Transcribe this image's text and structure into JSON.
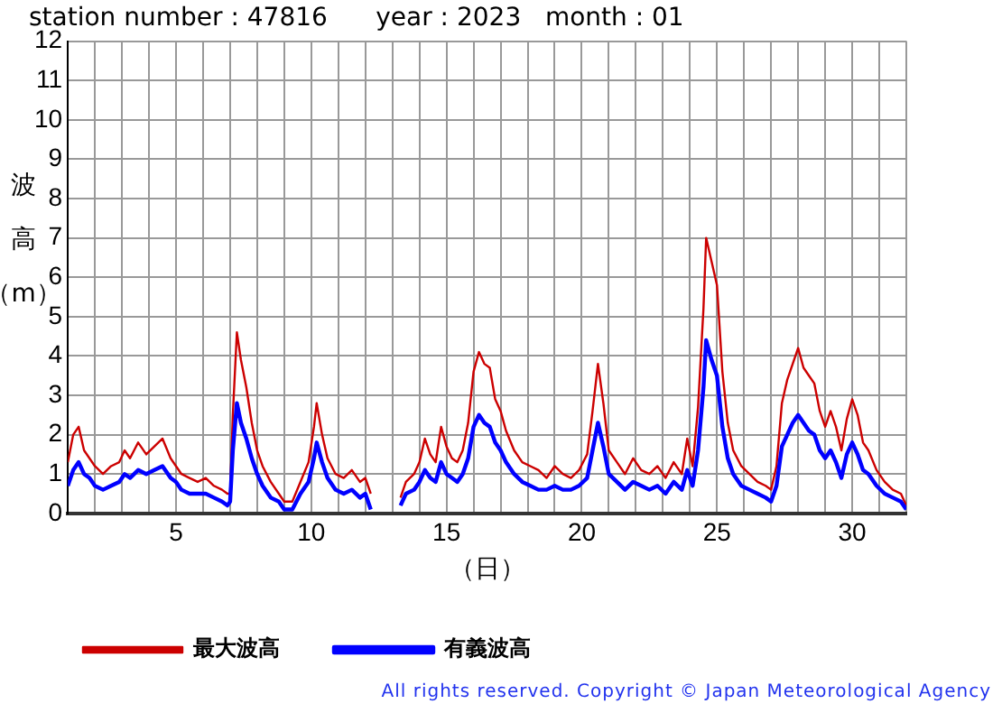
{
  "chart_data": {
    "type": "line",
    "title": "station number : 47816      year : 2023   month : 01",
    "xlabel": "（日）",
    "ylabel": "波高（m）",
    "x": [
      1.0,
      1.2,
      1.4,
      1.6,
      1.8,
      2.0,
      2.3,
      2.6,
      2.9,
      3.1,
      3.3,
      3.6,
      3.9,
      4.2,
      4.5,
      4.8,
      5.0,
      5.2,
      5.5,
      5.8,
      6.1,
      6.4,
      6.7,
      6.9,
      7.0,
      7.1,
      7.25,
      7.4,
      7.6,
      7.8,
      8.0,
      8.2,
      8.5,
      8.8,
      9.0,
      9.3,
      9.6,
      9.9,
      10.1,
      10.2,
      10.4,
      10.6,
      10.9,
      11.2,
      11.5,
      11.8,
      12.0,
      12.2,
      12.7,
      13.3,
      13.5,
      13.8,
      14.0,
      14.2,
      14.4,
      14.6,
      14.8,
      15.0,
      15.2,
      15.4,
      15.6,
      15.8,
      16.0,
      16.2,
      16.4,
      16.6,
      16.8,
      17.0,
      17.2,
      17.5,
      17.8,
      18.1,
      18.4,
      18.7,
      19.0,
      19.3,
      19.6,
      19.9,
      20.2,
      20.4,
      20.6,
      20.8,
      21.0,
      21.3,
      21.6,
      21.9,
      22.2,
      22.5,
      22.8,
      23.1,
      23.4,
      23.7,
      23.9,
      24.1,
      24.3,
      24.5,
      24.6,
      24.8,
      25.0,
      25.2,
      25.4,
      25.6,
      25.9,
      26.2,
      26.5,
      26.8,
      27.0,
      27.2,
      27.4,
      27.6,
      27.8,
      28.0,
      28.2,
      28.4,
      28.6,
      28.8,
      29.0,
      29.2,
      29.4,
      29.6,
      29.8,
      30.0,
      30.2,
      30.4,
      30.6,
      30.9,
      31.2,
      31.5,
      31.8,
      32.0
    ],
    "series": [
      {
        "name": "最大波高",
        "color": "#cc0000",
        "values": [
          1.3,
          2.0,
          2.2,
          1.6,
          1.4,
          1.2,
          1.0,
          1.2,
          1.3,
          1.6,
          1.4,
          1.8,
          1.5,
          1.7,
          1.9,
          1.4,
          1.2,
          1.0,
          0.9,
          0.8,
          0.9,
          0.7,
          0.6,
          0.5,
          0.5,
          2.5,
          4.6,
          3.9,
          3.2,
          2.3,
          1.6,
          1.2,
          0.8,
          0.5,
          0.3,
          0.3,
          0.8,
          1.3,
          2.2,
          2.8,
          2.0,
          1.4,
          1.0,
          0.9,
          1.1,
          0.8,
          0.9,
          0.5,
          null,
          0.4,
          0.8,
          1.0,
          1.3,
          1.9,
          1.5,
          1.3,
          2.2,
          1.7,
          1.4,
          1.3,
          1.6,
          2.3,
          3.6,
          4.1,
          3.8,
          3.7,
          2.9,
          2.6,
          2.1,
          1.6,
          1.3,
          1.2,
          1.1,
          0.9,
          1.2,
          1.0,
          0.9,
          1.1,
          1.5,
          2.6,
          3.8,
          2.8,
          1.6,
          1.3,
          1.0,
          1.4,
          1.1,
          1.0,
          1.2,
          0.9,
          1.3,
          1.0,
          1.9,
          1.2,
          2.7,
          5.2,
          7.0,
          6.4,
          5.8,
          3.6,
          2.3,
          1.6,
          1.2,
          1.0,
          0.8,
          0.7,
          0.6,
          1.2,
          2.8,
          3.4,
          3.8,
          4.2,
          3.7,
          3.5,
          3.3,
          2.6,
          2.2,
          2.6,
          2.2,
          1.6,
          2.4,
          2.9,
          2.5,
          1.8,
          1.6,
          1.1,
          0.8,
          0.6,
          0.5,
          0.2
        ]
      },
      {
        "name": "有義波高",
        "color": "#0000ff",
        "values": [
          0.7,
          1.1,
          1.3,
          1.0,
          0.9,
          0.7,
          0.6,
          0.7,
          0.8,
          1.0,
          0.9,
          1.1,
          1.0,
          1.1,
          1.2,
          0.9,
          0.8,
          0.6,
          0.5,
          0.5,
          0.5,
          0.4,
          0.3,
          0.2,
          0.3,
          1.6,
          2.8,
          2.3,
          1.9,
          1.4,
          1.0,
          0.7,
          0.4,
          0.3,
          0.1,
          0.1,
          0.5,
          0.8,
          1.4,
          1.8,
          1.3,
          0.9,
          0.6,
          0.5,
          0.6,
          0.4,
          0.5,
          0.1,
          null,
          0.2,
          0.5,
          0.6,
          0.8,
          1.1,
          0.9,
          0.8,
          1.3,
          1.0,
          0.9,
          0.8,
          1.0,
          1.4,
          2.2,
          2.5,
          2.3,
          2.2,
          1.8,
          1.6,
          1.3,
          1.0,
          0.8,
          0.7,
          0.6,
          0.6,
          0.7,
          0.6,
          0.6,
          0.7,
          0.9,
          1.6,
          2.3,
          1.7,
          1.0,
          0.8,
          0.6,
          0.8,
          0.7,
          0.6,
          0.7,
          0.5,
          0.8,
          0.6,
          1.1,
          0.7,
          1.6,
          3.2,
          4.4,
          3.9,
          3.5,
          2.2,
          1.4,
          1.0,
          0.7,
          0.6,
          0.5,
          0.4,
          0.3,
          0.7,
          1.7,
          2.0,
          2.3,
          2.5,
          2.3,
          2.1,
          2.0,
          1.6,
          1.4,
          1.6,
          1.3,
          0.9,
          1.5,
          1.8,
          1.5,
          1.1,
          1.0,
          0.7,
          0.5,
          0.4,
          0.3,
          0.1
        ]
      }
    ],
    "xlim": [
      1,
      32
    ],
    "xticks": [
      {
        "value": 1,
        "label": null
      },
      {
        "value": 2,
        "label": null
      },
      {
        "value": 3,
        "label": null
      },
      {
        "value": 4,
        "label": null
      },
      5,
      {
        "value": 6,
        "label": null
      },
      {
        "value": 7,
        "label": null
      },
      {
        "value": 8,
        "label": null
      },
      {
        "value": 9,
        "label": null
      },
      10,
      {
        "value": 11,
        "label": null
      },
      {
        "value": 12,
        "label": null
      },
      {
        "value": 13,
        "label": null
      },
      {
        "value": 14,
        "label": null
      },
      15,
      {
        "value": 16,
        "label": null
      },
      {
        "value": 17,
        "label": null
      },
      {
        "value": 18,
        "label": null
      },
      {
        "value": 19,
        "label": null
      },
      20,
      {
        "value": 21,
        "label": null
      },
      {
        "value": 22,
        "label": null
      },
      {
        "value": 23,
        "label": null
      },
      {
        "value": 24,
        "label": null
      },
      25,
      {
        "value": 26,
        "label": null
      },
      {
        "value": 27,
        "label": null
      },
      {
        "value": 28,
        "label": null
      },
      {
        "value": 29,
        "label": null
      },
      30,
      {
        "value": 31,
        "label": null
      },
      {
        "value": 32,
        "label": null
      }
    ],
    "ylim": [
      0,
      12
    ],
    "yticks": [
      0,
      1,
      2,
      3,
      4,
      5,
      6,
      7,
      8,
      9,
      10,
      11,
      12
    ],
    "grid": true,
    "legend": "bottom left",
    "marker": "none",
    "line_style": "solid",
    "annotations": [
      "All rights reserved. Copyright © Japan Meteorological Agency"
    ]
  }
}
